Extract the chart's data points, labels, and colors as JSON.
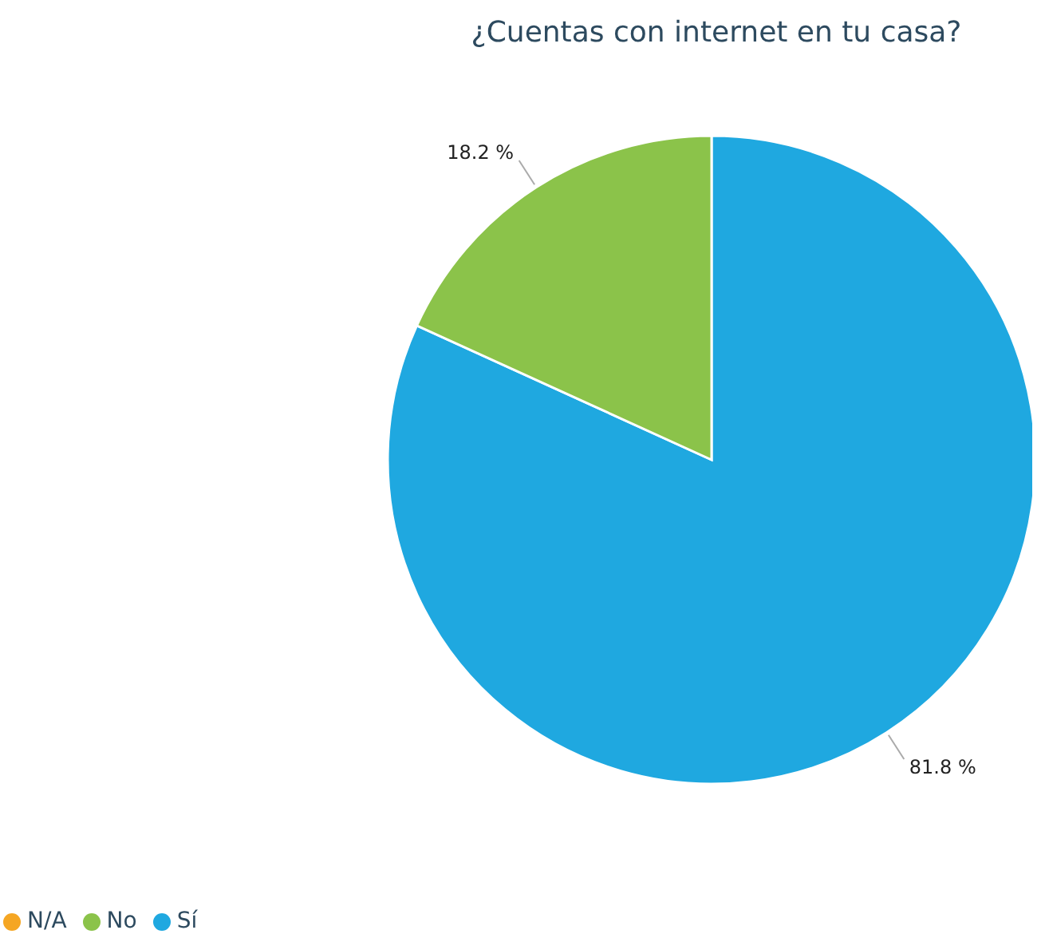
{
  "chart_data": {
    "type": "pie",
    "title": "¿Cuentas con internet en tu casa?",
    "categories": [
      "Sí",
      "No",
      "N/A"
    ],
    "values": [
      81.8,
      18.2,
      0
    ],
    "colors": [
      "#1fa8e0",
      "#8bc34a",
      "#f5a623"
    ],
    "value_labels": [
      "81.8 %",
      "18.2 %",
      null
    ],
    "legend": "bottom left"
  }
}
